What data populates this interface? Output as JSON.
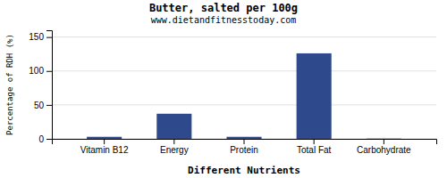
{
  "chart_data": {
    "type": "bar",
    "title": "Butter, salted per 100g",
    "subtitle": "www.dietandfitnesstoday.com",
    "xlabel": "Different Nutrients",
    "ylabel": "Percentage of RDH (%)",
    "categories": [
      "Vitamin B12",
      "Energy",
      "Protein",
      "Total Fat",
      "Carbohydrate"
    ],
    "values": [
      3,
      37,
      3,
      126,
      0.4
    ],
    "color": "#2e4a8c",
    "ylim": [
      0,
      160
    ],
    "yticks": [
      0,
      50,
      100,
      150
    ],
    "grid": true
  }
}
